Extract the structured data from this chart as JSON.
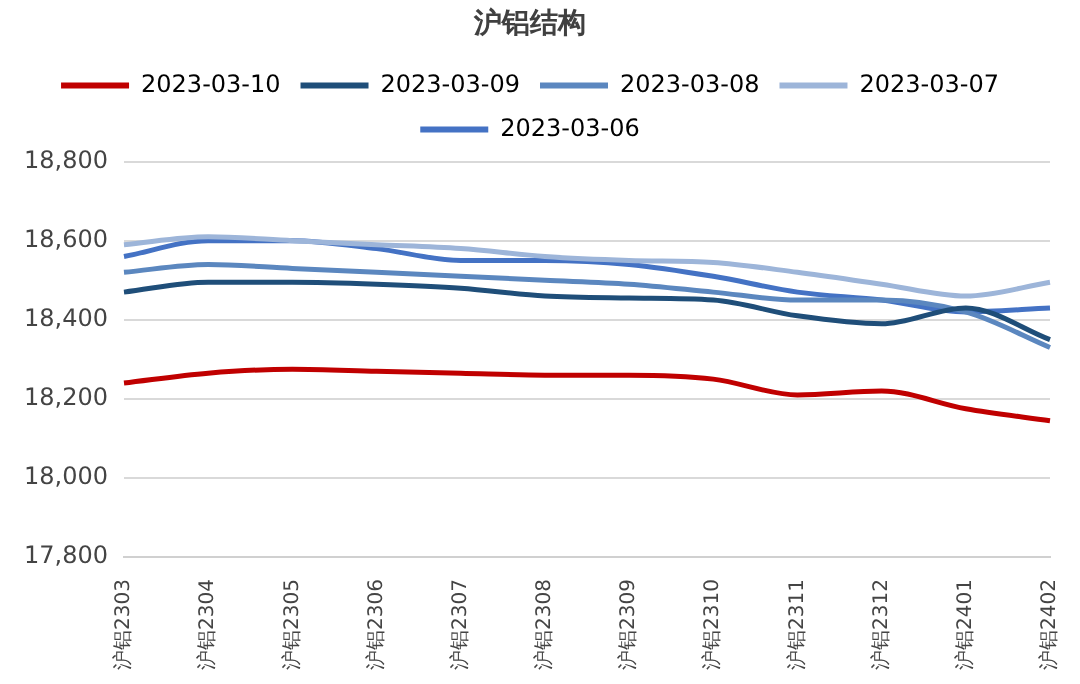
{
  "chart_data": {
    "type": "line",
    "title": "沪铝结构",
    "categories": [
      "沪铝2303",
      "沪铝2304",
      "沪铝2305",
      "沪铝2306",
      "沪铝2307",
      "沪铝2308",
      "沪铝2309",
      "沪铝2310",
      "沪铝2311",
      "沪铝2312",
      "沪铝2401",
      "沪铝2402"
    ],
    "series": [
      {
        "name": "2023-03-10",
        "color": "#c00000",
        "values": [
          18240,
          18265,
          18275,
          18270,
          18265,
          18260,
          18260,
          18250,
          18210,
          18220,
          18175,
          18145
        ]
      },
      {
        "name": "2023-03-09",
        "color": "#1f4e79",
        "values": [
          18470,
          18495,
          18495,
          18490,
          18480,
          18460,
          18455,
          18450,
          18410,
          18390,
          18430,
          18350
        ]
      },
      {
        "name": "2023-03-08",
        "color": "#5b87bf",
        "values": [
          18520,
          18540,
          18530,
          18520,
          18510,
          18500,
          18490,
          18470,
          18450,
          18450,
          18420,
          18330
        ]
      },
      {
        "name": "2023-03-07",
        "color": "#9db5d9",
        "values": [
          18590,
          18610,
          18600,
          18590,
          18580,
          18560,
          18550,
          18545,
          18520,
          18490,
          18460,
          18495
        ]
      },
      {
        "name": "2023-03-06",
        "color": "#4472c4",
        "values": [
          18560,
          18600,
          18600,
          18580,
          18550,
          18550,
          18540,
          18510,
          18470,
          18450,
          18420,
          18430
        ]
      }
    ],
    "ylim": [
      17800,
      18800
    ],
    "yticks": [
      {
        "value": 17800,
        "label": "17,800"
      },
      {
        "value": 18000,
        "label": "18,000"
      },
      {
        "value": 18200,
        "label": "18,200"
      },
      {
        "value": 18400,
        "label": "18,400"
      },
      {
        "value": 18600,
        "label": "18,600"
      },
      {
        "value": 18800,
        "label": "18,800"
      }
    ],
    "grid": "y",
    "legend": "top",
    "marker": "none",
    "line_style": "solid"
  }
}
